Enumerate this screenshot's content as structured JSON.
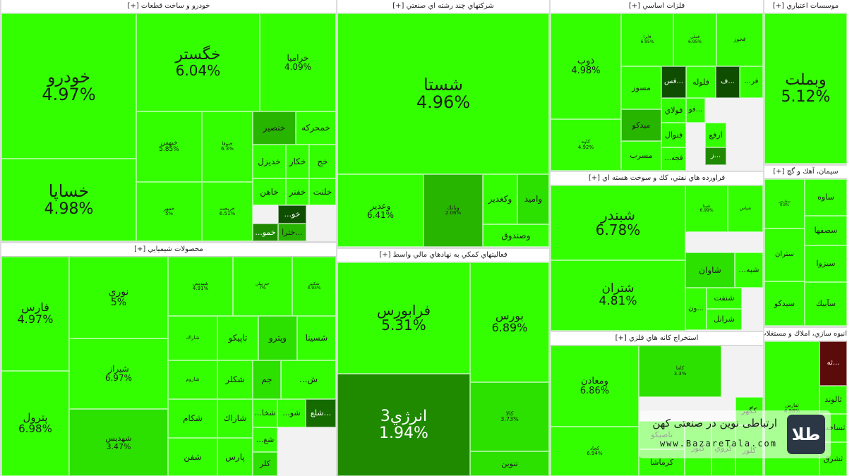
{
  "chart_data": {
    "type": "treemap",
    "colors": {
      "bright": "#33ff00",
      "light": "#2ce000",
      "mid": "#27b500",
      "dark": "#1f8a00",
      "darker": "#166b00",
      "deep": "#0f4d00",
      "maroon": "#5c0b0b"
    },
    "sectors": [
      {
        "id": "auto",
        "title": "خودرو و ساخت قطعات [+]",
        "tiles": [
          {
            "name": "خودرو",
            "value": "4.97%",
            "c": "bright"
          },
          {
            "name": "خساپا",
            "value": "4.98%",
            "c": "bright"
          },
          {
            "name": "خگستر",
            "value": "6.04%",
            "c": "bright"
          },
          {
            "name": "خراميا",
            "value": "4.09%",
            "c": "bright"
          },
          {
            "name": "خبهمن",
            "value": "5.85%",
            "c": "bright"
          },
          {
            "name": "ختوقا",
            "value": "6.3%",
            "c": "bright"
          },
          {
            "name": "خنصير",
            "value": "",
            "c": "mid"
          },
          {
            "name": "خمحركه",
            "value": "",
            "c": "bright"
          },
          {
            "name": "خمهر",
            "value": "5%",
            "c": "bright"
          },
          {
            "name": "خريخت",
            "value": "6.51%",
            "c": "bright"
          },
          {
            "name": "خديزل",
            "value": "",
            "c": "bright"
          },
          {
            "name": "خكار",
            "value": "",
            "c": "bright"
          },
          {
            "name": "خج",
            "value": "",
            "c": "bright"
          },
          {
            "name": "خاهن",
            "value": "",
            "c": "bright"
          },
          {
            "name": "خفنر",
            "value": "",
            "c": "bright"
          },
          {
            "name": "خلنت",
            "value": "",
            "c": "bright"
          },
          {
            "name": "خو...",
            "value": "",
            "c": "deep"
          },
          {
            "name": "خمو...",
            "value": "",
            "c": "dark"
          },
          {
            "name": "...خترا",
            "value": "",
            "c": "mid"
          }
        ]
      },
      {
        "id": "multi",
        "title": "شركتهاي چند رشته اي صنعتي [+]",
        "tiles": [
          {
            "name": "شستا",
            "value": "4.96%",
            "c": "bright"
          },
          {
            "name": "وعدير",
            "value": "6.41%",
            "c": "bright"
          },
          {
            "name": "وبانك",
            "value": "2.06%",
            "c": "mid"
          },
          {
            "name": "وكغدير",
            "value": "",
            "c": "bright"
          },
          {
            "name": "واميد",
            "value": "",
            "c": "light"
          },
          {
            "name": "وصندوق",
            "value": "",
            "c": "bright"
          }
        ]
      },
      {
        "id": "metals",
        "title": "فلزات اساسي [+]",
        "tiles": [
          {
            "name": "ذوب",
            "value": "4.98%",
            "c": "bright"
          },
          {
            "name": "كاوه",
            "value": "4.92%",
            "c": "bright"
          },
          {
            "name": "فايرا",
            "value": "6.95%",
            "c": "bright"
          },
          {
            "name": "فملي",
            "value": "6.95%",
            "c": "bright"
          },
          {
            "name": "فخوز",
            "value": "",
            "c": "bright"
          },
          {
            "name": "مسوز",
            "value": "",
            "c": "bright"
          },
          {
            "name": "...فس",
            "value": "",
            "c": "deep"
          },
          {
            "name": "فلوله",
            "value": "",
            "c": "bright"
          },
          {
            "name": "...ف",
            "value": "",
            "c": "deep"
          },
          {
            "name": "فر...",
            "value": "",
            "c": "bright"
          },
          {
            "name": "ميدكو",
            "value": "",
            "c": "mid"
          },
          {
            "name": "فولاي",
            "value": "",
            "c": "bright"
          },
          {
            "name": "...فو",
            "value": "",
            "c": "bright"
          },
          {
            "name": "فنوال",
            "value": "",
            "c": "bright"
          },
          {
            "name": "ارفع",
            "value": "",
            "c": "bright"
          },
          {
            "name": "...ز",
            "value": "",
            "c": "dark"
          },
          {
            "name": "مسرب",
            "value": "",
            "c": "bright"
          },
          {
            "name": "فجه...",
            "value": "",
            "c": "bright"
          }
        ]
      },
      {
        "id": "credit",
        "title": "موسسات اعتباري [+]",
        "tiles": [
          {
            "name": "وبملت",
            "value": "5.12%",
            "c": "bright"
          }
        ]
      },
      {
        "id": "chem",
        "title": "محصولات شيميايي [+]",
        "tiles": [
          {
            "name": "فارس",
            "value": "4.97%",
            "c": "bright"
          },
          {
            "name": "پترول",
            "value": "6.98%",
            "c": "bright"
          },
          {
            "name": "نوري",
            "value": "5%",
            "c": "bright"
          },
          {
            "name": "شيراز",
            "value": "6.97%",
            "c": "bright"
          },
          {
            "name": "شهديس",
            "value": "3.47%",
            "c": "light"
          },
          {
            "name": "شپديس",
            "value": "4.91%",
            "c": "bright"
          },
          {
            "name": "جم پيلن",
            "value": "7%",
            "c": "bright"
          },
          {
            "name": "شكبير",
            "value": "4.93%",
            "c": "bright"
          },
          {
            "name": "شاراك",
            "value": "",
            "c": "bright"
          },
          {
            "name": "تاپيكو",
            "value": "",
            "c": "bright"
          },
          {
            "name": "وپترو",
            "value": "",
            "c": "light"
          },
          {
            "name": "شسينا",
            "value": "",
            "c": "bright"
          },
          {
            "name": "شاروم",
            "value": "",
            "c": "bright"
          },
          {
            "name": "شكلر",
            "value": "",
            "c": "bright"
          },
          {
            "name": "جم",
            "value": "",
            "c": "light"
          },
          {
            "name": "ش...",
            "value": "",
            "c": "bright"
          },
          {
            "name": "شكام",
            "value": "",
            "c": "bright"
          },
          {
            "name": "شاراك",
            "value": "",
            "c": "bright"
          },
          {
            "name": "شخا...",
            "value": "",
            "c": "bright"
          },
          {
            "name": "شو...",
            "value": "",
            "c": "bright"
          },
          {
            "name": "...شلع",
            "value": "",
            "c": "darker"
          },
          {
            "name": "شفن",
            "value": "",
            "c": "bright"
          },
          {
            "name": "پارس",
            "value": "",
            "c": "bright"
          },
          {
            "name": "شغ...",
            "value": "",
            "c": "bright"
          },
          {
            "name": "كلر",
            "value": "",
            "c": "light"
          }
        ]
      },
      {
        "id": "finance",
        "title": "فعاليتهاي كمكي به نهادهاي مالي واسط [+]",
        "tiles": [
          {
            "name": "فرابورس",
            "value": "5.31%",
            "c": "bright"
          },
          {
            "name": "بورس",
            "value": "6.89%",
            "c": "bright"
          },
          {
            "name": "انرژي3",
            "value": "1.94%",
            "c": "dark"
          },
          {
            "name": "كالا",
            "value": "3.73%",
            "c": "light"
          },
          {
            "name": "تنوين",
            "value": "",
            "c": "light"
          }
        ]
      },
      {
        "id": "refine",
        "title": "فراورده هاي نفتي، كك و سوخت هسته اي [+]",
        "tiles": [
          {
            "name": "شبندر",
            "value": "6.78%",
            "c": "bright"
          },
          {
            "name": "شپنا",
            "value": "6.99%",
            "c": "bright"
          },
          {
            "name": "شپاس",
            "value": "",
            "c": "bright"
          },
          {
            "name": "شتران",
            "value": "4.81%",
            "c": "bright"
          },
          {
            "name": "شاوان",
            "value": "",
            "c": "light"
          },
          {
            "name": "شبه...",
            "value": "",
            "c": "bright"
          },
          {
            "name": "شنفت",
            "value": "",
            "c": "bright"
          },
          {
            "name": "...ون",
            "value": "",
            "c": "bright"
          },
          {
            "name": "شرانل",
            "value": "",
            "c": "bright"
          }
        ]
      },
      {
        "id": "mining",
        "title": "استخراج كانه هاي فلزي [+]",
        "tiles": [
          {
            "name": "ومعادن",
            "value": "6.86%",
            "c": "bright"
          },
          {
            "name": "كچاد",
            "value": "6.94%",
            "c": "bright"
          },
          {
            "name": "كاما",
            "value": "3.3%",
            "c": "light"
          },
          {
            "name": "كنور",
            "value": "",
            "c": "bright"
          },
          {
            "name": "كگهر",
            "value": "",
            "c": "bright"
          },
          {
            "name": "تاصيكو",
            "value": "",
            "c": "bright"
          },
          {
            "name": "كرماشا",
            "value": "",
            "c": "bright"
          },
          {
            "name": "كروي",
            "value": "",
            "c": "bright"
          },
          {
            "name": "كلور",
            "value": "",
            "c": "bright"
          }
        ]
      },
      {
        "id": "cement",
        "title": "سيمان، آهك و گچ [+]",
        "tiles": [
          {
            "name": "ساوه",
            "value": "",
            "c": "bright"
          },
          {
            "name": "سصفها",
            "value": "",
            "c": "bright"
          },
          {
            "name": "ستران",
            "value": "",
            "c": "bright"
          },
          {
            "name": "سيزوا",
            "value": "",
            "c": "bright"
          },
          {
            "name": "سيدكو",
            "value": "",
            "c": "bright"
          },
          {
            "name": "سآبيك",
            "value": "",
            "c": "bright"
          },
          {
            "name": "سفارس",
            "value": "6.8%",
            "c": "bright"
          }
        ]
      },
      {
        "id": "realestate",
        "title": "انبوه سازي، املاك و مستغلات [+]",
        "tiles": [
          {
            "name": "ثفارس",
            "value": "4.98%",
            "c": "bright"
          },
          {
            "name": "...ثه",
            "value": "",
            "c": "maroon"
          },
          {
            "name": "ثالوند",
            "value": "",
            "c": "bright"
          },
          {
            "name": "ثساخت",
            "value": "",
            "c": "bright"
          },
          {
            "name": "ثشرق",
            "value": "",
            "c": "bright"
          }
        ]
      }
    ]
  },
  "watermark": {
    "text": "ارتباطی نوین در صنعتی کهن",
    "url": "www.BazareTala.com",
    "logo_text": "طلا"
  }
}
